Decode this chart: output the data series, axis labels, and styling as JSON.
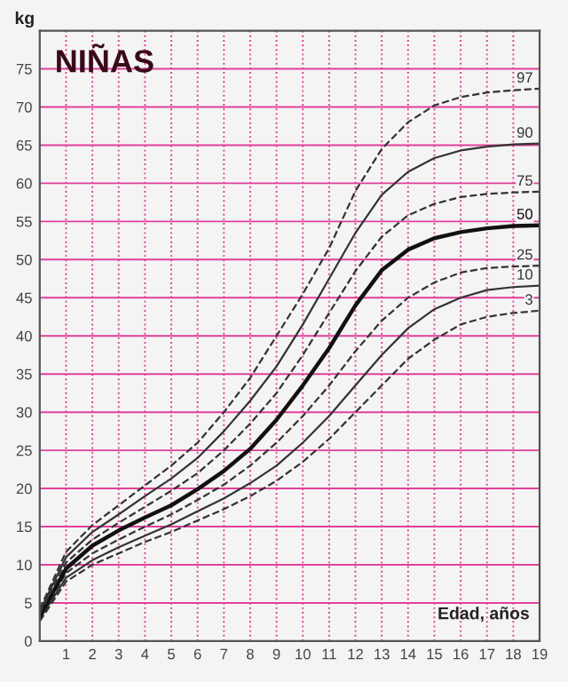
{
  "chart_data": {
    "type": "line",
    "title": "NIÑAS",
    "xlabel": "Edad, años",
    "ylabel": "kg",
    "x": [
      0,
      1,
      2,
      3,
      4,
      5,
      6,
      7,
      8,
      9,
      10,
      11,
      12,
      13,
      14,
      15,
      16,
      17,
      18,
      19
    ],
    "series": [
      {
        "name": "3",
        "color": "#333333",
        "line_style": "dashed",
        "values": [
          2.6,
          7.8,
          10,
          11.5,
          13,
          14.3,
          15.8,
          17.3,
          19,
          21,
          23.5,
          26.5,
          30,
          33.5,
          37,
          39.5,
          41.5,
          42.5,
          43,
          43.3
        ]
      },
      {
        "name": "10",
        "color": "#333333",
        "line_style": "solid",
        "values": [
          2.9,
          8.3,
          10.6,
          12.3,
          13.8,
          15.3,
          17,
          18.7,
          20.7,
          23,
          26,
          29.5,
          33.5,
          37.5,
          41,
          43.5,
          45,
          46,
          46.4,
          46.6
        ]
      },
      {
        "name": "25",
        "color": "#333333",
        "line_style": "dashed",
        "values": [
          3.1,
          8.9,
          11.5,
          13.3,
          15,
          16.6,
          18.5,
          20.5,
          23,
          26,
          29.5,
          33.5,
          38,
          42,
          45,
          47,
          48.3,
          48.9,
          49.1,
          49.2
        ]
      },
      {
        "name": "50",
        "color": "#111111",
        "line_style": "solid",
        "values": [
          3.3,
          9.5,
          12.5,
          14.5,
          16.2,
          17.8,
          19.9,
          22.3,
          25.2,
          29,
          33.5,
          38.4,
          44,
          48.6,
          51.3,
          52.8,
          53.6,
          54.1,
          54.4,
          54.5
        ]
      },
      {
        "name": "75",
        "color": "#333333",
        "line_style": "dashed",
        "values": [
          3.6,
          10.3,
          13.3,
          15.5,
          17.6,
          19.7,
          22,
          25,
          28.5,
          32.5,
          37.5,
          43,
          48.5,
          53,
          55.8,
          57.3,
          58.2,
          58.6,
          58.8,
          58.9
        ]
      },
      {
        "name": "90",
        "color": "#333333",
        "line_style": "solid",
        "values": [
          3.9,
          11,
          14.3,
          16.6,
          19,
          21.3,
          24,
          27.5,
          31.5,
          36,
          41.5,
          47.5,
          53.5,
          58.5,
          61.5,
          63.3,
          64.3,
          64.8,
          65.1,
          65.2
        ]
      },
      {
        "name": "97",
        "color": "#333333",
        "line_style": "dashed",
        "values": [
          4.2,
          11.7,
          15.2,
          17.8,
          20.4,
          23,
          26,
          30,
          34.5,
          40,
          45.5,
          51.5,
          59,
          64.5,
          68,
          70.2,
          71.3,
          71.9,
          72.2,
          72.4
        ]
      }
    ],
    "xlim": [
      0,
      19
    ],
    "xticks": [
      1,
      2,
      3,
      4,
      5,
      6,
      7,
      8,
      9,
      10,
      11,
      12,
      13,
      14,
      15,
      16,
      17,
      18,
      19
    ],
    "ylim": [
      0,
      80
    ],
    "yticks": [
      0,
      5,
      10,
      15,
      20,
      25,
      30,
      35,
      40,
      45,
      50,
      55,
      60,
      65,
      70,
      75
    ],
    "grid": true,
    "legend": false
  }
}
